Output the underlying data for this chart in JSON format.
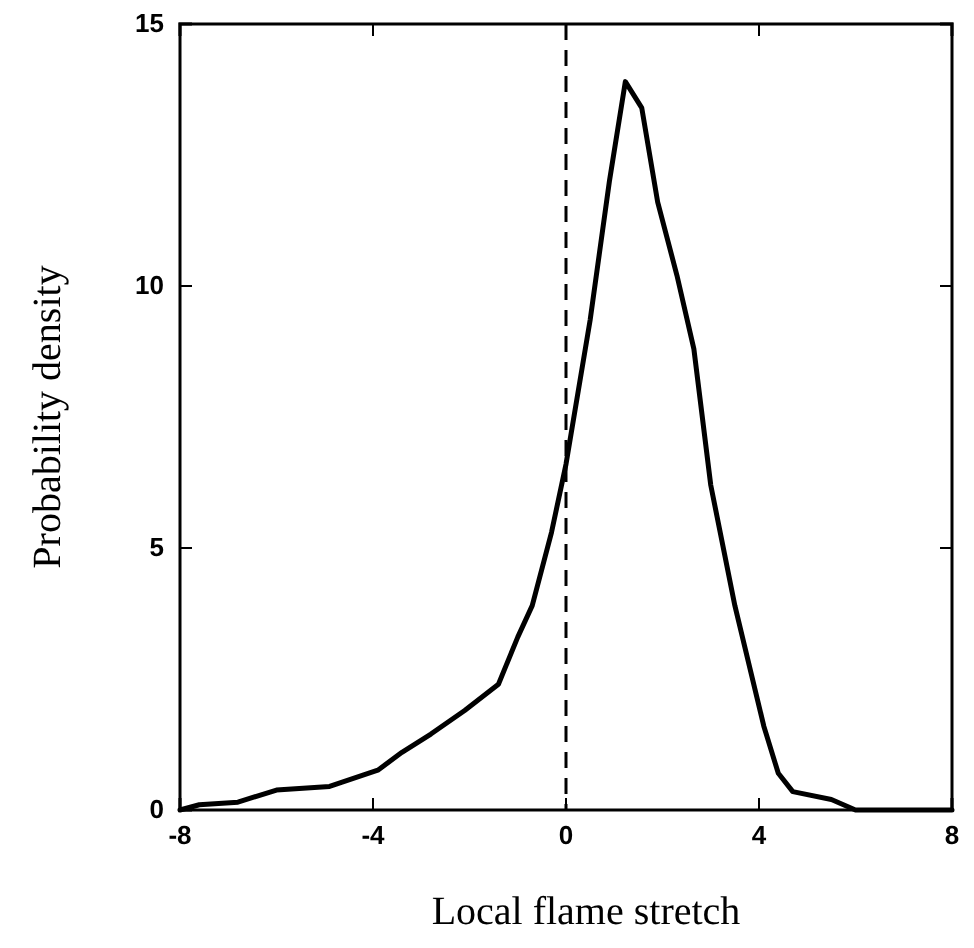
{
  "chart_data": {
    "type": "line",
    "xlabel": "Local flame stretch",
    "ylabel": "Probability density",
    "series": [
      {
        "color": "#000000",
        "x": [
          -8,
          -7.6,
          -6.8,
          -6,
          -4.9,
          -3.9,
          -3.4,
          -2.8,
          -2.1,
          -1.4,
          -1,
          -0.7,
          -0.3,
          0,
          0.5,
          0.9,
          1.23,
          1.57,
          1.9,
          2.3,
          2.65,
          3,
          3.5,
          4.1,
          4.4,
          4.7,
          5.5,
          6,
          7,
          8
        ],
        "values": [
          0,
          0.1,
          0.15,
          0.38,
          0.45,
          0.76,
          1.1,
          1.45,
          1.9,
          2.4,
          3.3,
          3.9,
          5.3,
          6.6,
          9.35,
          12,
          13.9,
          13.4,
          11.6,
          10.2,
          8.8,
          6.2,
          3.9,
          1.6,
          0.7,
          0.35,
          0.2,
          0,
          0,
          0
        ]
      }
    ],
    "xlim": [
      -8,
      8
    ],
    "xticks": [
      -8,
      -4,
      0,
      4,
      8
    ],
    "ylim": [
      0,
      15
    ],
    "yticks": [
      0,
      5,
      10,
      15
    ],
    "ref_lines": [
      {
        "axis": "x",
        "value": 0,
        "line_style": "dashed",
        "color": "#000000"
      }
    ],
    "line_style": "solid",
    "marker": "none"
  }
}
